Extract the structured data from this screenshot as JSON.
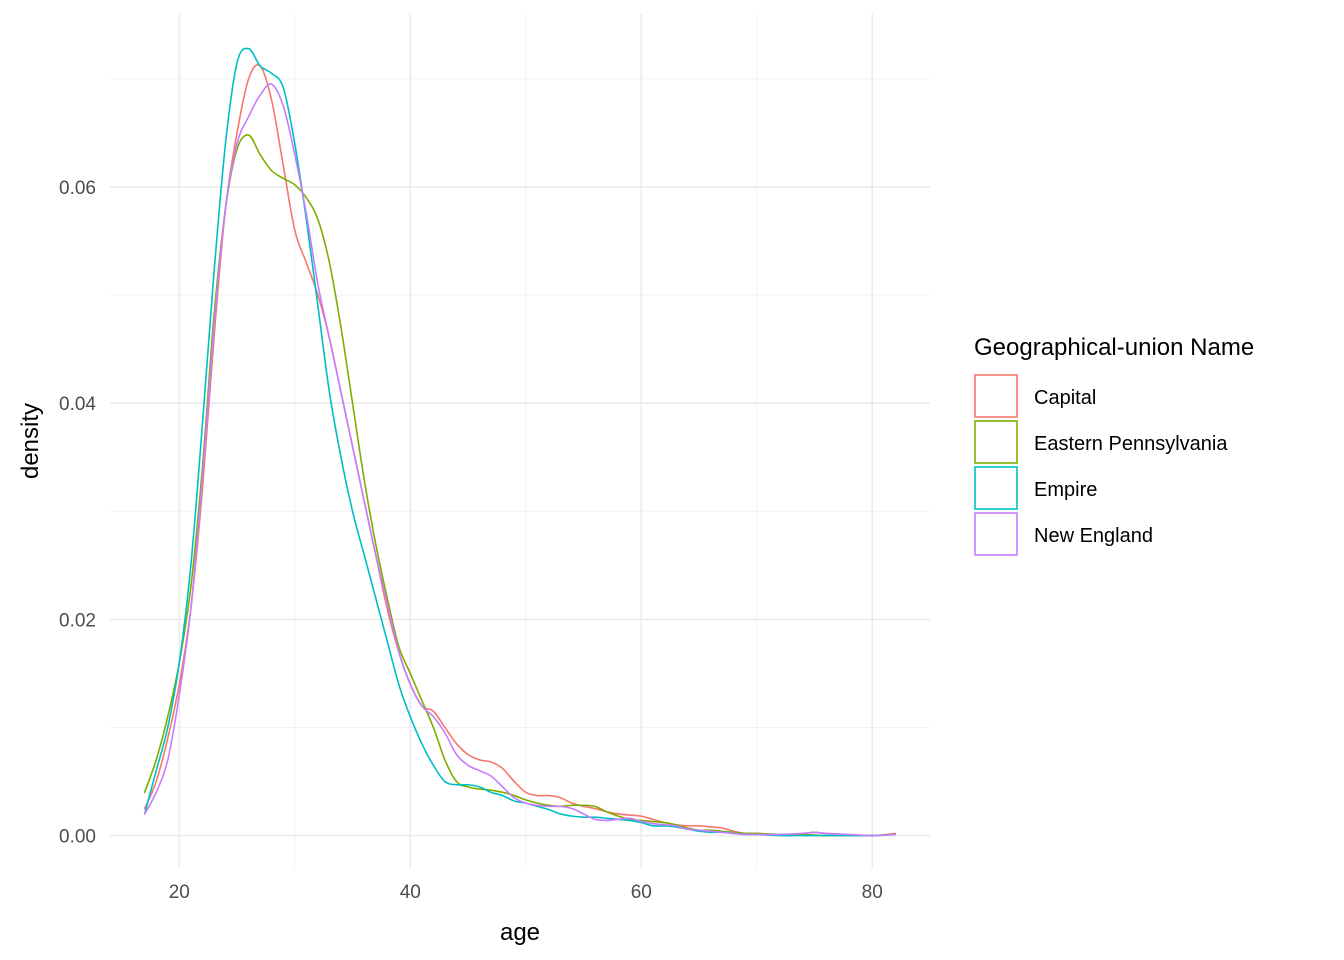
{
  "chart_data": {
    "type": "line",
    "xlabel": "age",
    "ylabel": "density",
    "xlim": [
      14,
      85
    ],
    "ylim": [
      -0.003,
      0.076
    ],
    "x_ticks": [
      20,
      40,
      60,
      80
    ],
    "x_tick_labels": [
      "20",
      "40",
      "60",
      "80"
    ],
    "y_ticks": [
      0.0,
      0.02,
      0.04,
      0.06
    ],
    "y_tick_labels": [
      "0.00",
      "0.02",
      "0.04",
      "0.06"
    ],
    "grid": true,
    "legend": {
      "title": "Geographical-union Name",
      "position": "right"
    },
    "series": [
      {
        "name": "Capital",
        "color": "#F8766D",
        "points": [
          [
            17,
            0.0025
          ],
          [
            18,
            0.005
          ],
          [
            19,
            0.009
          ],
          [
            20,
            0.014
          ],
          [
            21,
            0.021
          ],
          [
            22,
            0.032
          ],
          [
            23,
            0.046
          ],
          [
            24,
            0.058
          ],
          [
            25,
            0.065
          ],
          [
            26,
            0.07
          ],
          [
            27,
            0.0712
          ],
          [
            28,
            0.068
          ],
          [
            29,
            0.062
          ],
          [
            30,
            0.056
          ],
          [
            31,
            0.053
          ],
          [
            32,
            0.05
          ],
          [
            33,
            0.046
          ],
          [
            34,
            0.041
          ],
          [
            35,
            0.036
          ],
          [
            36,
            0.031
          ],
          [
            37,
            0.026
          ],
          [
            38,
            0.021
          ],
          [
            39,
            0.017
          ],
          [
            40,
            0.014
          ],
          [
            41,
            0.012
          ],
          [
            42,
            0.0115
          ],
          [
            43,
            0.01
          ],
          [
            44,
            0.0085
          ],
          [
            45,
            0.0075
          ],
          [
            46,
            0.007
          ],
          [
            47,
            0.0068
          ],
          [
            48,
            0.0062
          ],
          [
            49,
            0.005
          ],
          [
            50,
            0.004
          ],
          [
            51,
            0.0037
          ],
          [
            52,
            0.0037
          ],
          [
            53,
            0.0035
          ],
          [
            54,
            0.003
          ],
          [
            55,
            0.0027
          ],
          [
            56,
            0.0025
          ],
          [
            57,
            0.0022
          ],
          [
            58,
            0.002
          ],
          [
            59,
            0.0019
          ],
          [
            60,
            0.0018
          ],
          [
            61,
            0.0015
          ],
          [
            62,
            0.0012
          ],
          [
            63,
            0.001
          ],
          [
            64,
            0.0009
          ],
          [
            65,
            0.0009
          ],
          [
            66,
            0.0008
          ],
          [
            67,
            0.0007
          ],
          [
            68,
            0.0004
          ],
          [
            69,
            0.0002
          ],
          [
            70,
            0.0002
          ],
          [
            72,
            0.0001
          ],
          [
            74,
            0.0002
          ],
          [
            75,
            0.0003
          ],
          [
            76,
            0.0002
          ],
          [
            78,
            0.0001
          ],
          [
            80,
            0.0
          ],
          [
            82,
            0.0002
          ]
        ]
      },
      {
        "name": "Eastern Pennsylvania",
        "color": "#7CAE00",
        "points": [
          [
            17,
            0.004
          ],
          [
            18,
            0.007
          ],
          [
            19,
            0.011
          ],
          [
            20,
            0.016
          ],
          [
            21,
            0.023
          ],
          [
            22,
            0.034
          ],
          [
            23,
            0.048
          ],
          [
            24,
            0.058
          ],
          [
            25,
            0.0635
          ],
          [
            26,
            0.0648
          ],
          [
            27,
            0.063
          ],
          [
            28,
            0.0615
          ],
          [
            29,
            0.0608
          ],
          [
            30,
            0.0602
          ],
          [
            31,
            0.059
          ],
          [
            32,
            0.057
          ],
          [
            33,
            0.053
          ],
          [
            34,
            0.047
          ],
          [
            35,
            0.04
          ],
          [
            36,
            0.033
          ],
          [
            37,
            0.027
          ],
          [
            38,
            0.022
          ],
          [
            39,
            0.0175
          ],
          [
            40,
            0.015
          ],
          [
            41,
            0.0125
          ],
          [
            42,
            0.01
          ],
          [
            43,
            0.007
          ],
          [
            44,
            0.005
          ],
          [
            45,
            0.0045
          ],
          [
            46,
            0.0043
          ],
          [
            47,
            0.0042
          ],
          [
            48,
            0.004
          ],
          [
            49,
            0.0037
          ],
          [
            50,
            0.0033
          ],
          [
            51,
            0.003
          ],
          [
            52,
            0.0028
          ],
          [
            53,
            0.0027
          ],
          [
            54,
            0.0028
          ],
          [
            55,
            0.0028
          ],
          [
            56,
            0.0027
          ],
          [
            57,
            0.0022
          ],
          [
            58,
            0.0018
          ],
          [
            59,
            0.0015
          ],
          [
            60,
            0.0014
          ],
          [
            61,
            0.0013
          ],
          [
            62,
            0.0012
          ],
          [
            63,
            0.001
          ],
          [
            64,
            0.0007
          ],
          [
            65,
            0.0005
          ],
          [
            66,
            0.0005
          ],
          [
            67,
            0.0004
          ],
          [
            68,
            0.0003
          ],
          [
            69,
            0.0002
          ],
          [
            70,
            0.0002
          ],
          [
            72,
            0.0001
          ],
          [
            74,
            0.0001
          ],
          [
            76,
            0.0
          ],
          [
            78,
            0.0
          ],
          [
            80,
            0.0
          ],
          [
            82,
            0.0001
          ]
        ]
      },
      {
        "name": "Empire",
        "color": "#00BFC4",
        "points": [
          [
            17,
            0.002
          ],
          [
            18,
            0.006
          ],
          [
            19,
            0.01
          ],
          [
            20,
            0.016
          ],
          [
            21,
            0.025
          ],
          [
            22,
            0.038
          ],
          [
            23,
            0.052
          ],
          [
            24,
            0.064
          ],
          [
            25,
            0.0715
          ],
          [
            26,
            0.0728
          ],
          [
            27,
            0.0712
          ],
          [
            28,
            0.0705
          ],
          [
            29,
            0.0692
          ],
          [
            30,
            0.064
          ],
          [
            31,
            0.057
          ],
          [
            32,
            0.049
          ],
          [
            33,
            0.041
          ],
          [
            34,
            0.035
          ],
          [
            35,
            0.03
          ],
          [
            36,
            0.026
          ],
          [
            37,
            0.022
          ],
          [
            38,
            0.018
          ],
          [
            39,
            0.014
          ],
          [
            40,
            0.011
          ],
          [
            41,
            0.0085
          ],
          [
            42,
            0.0065
          ],
          [
            43,
            0.005
          ],
          [
            44,
            0.0047
          ],
          [
            45,
            0.0047
          ],
          [
            46,
            0.0045
          ],
          [
            47,
            0.004
          ],
          [
            48,
            0.0037
          ],
          [
            49,
            0.0032
          ],
          [
            50,
            0.003
          ],
          [
            51,
            0.0027
          ],
          [
            52,
            0.0024
          ],
          [
            53,
            0.002
          ],
          [
            54,
            0.0018
          ],
          [
            55,
            0.0017
          ],
          [
            56,
            0.0017
          ],
          [
            57,
            0.0016
          ],
          [
            58,
            0.0015
          ],
          [
            59,
            0.0014
          ],
          [
            60,
            0.0012
          ],
          [
            61,
            0.0009
          ],
          [
            62,
            0.0009
          ],
          [
            63,
            0.0008
          ],
          [
            64,
            0.0006
          ],
          [
            65,
            0.0004
          ],
          [
            66,
            0.0003
          ],
          [
            67,
            0.0003
          ],
          [
            68,
            0.0002
          ],
          [
            69,
            0.0001
          ],
          [
            70,
            0.0001
          ],
          [
            72,
            0.0
          ],
          [
            74,
            0.0
          ],
          [
            76,
            0.0
          ],
          [
            78,
            0.0
          ],
          [
            80,
            0.0
          ],
          [
            82,
            0.0001
          ]
        ]
      },
      {
        "name": "New England",
        "color": "#C77CFF",
        "points": [
          [
            17,
            0.002
          ],
          [
            18,
            0.004
          ],
          [
            19,
            0.007
          ],
          [
            20,
            0.013
          ],
          [
            21,
            0.021
          ],
          [
            22,
            0.033
          ],
          [
            23,
            0.047
          ],
          [
            24,
            0.058
          ],
          [
            25,
            0.064
          ],
          [
            26,
            0.0665
          ],
          [
            27,
            0.0685
          ],
          [
            28,
            0.0695
          ],
          [
            29,
            0.0675
          ],
          [
            30,
            0.063
          ],
          [
            31,
            0.0575
          ],
          [
            32,
            0.051
          ],
          [
            33,
            0.046
          ],
          [
            34,
            0.041
          ],
          [
            35,
            0.036
          ],
          [
            36,
            0.031
          ],
          [
            37,
            0.026
          ],
          [
            38,
            0.0215
          ],
          [
            39,
            0.017
          ],
          [
            40,
            0.014
          ],
          [
            41,
            0.012
          ],
          [
            42,
            0.011
          ],
          [
            43,
            0.0095
          ],
          [
            44,
            0.0075
          ],
          [
            45,
            0.0065
          ],
          [
            46,
            0.006
          ],
          [
            47,
            0.0055
          ],
          [
            48,
            0.0045
          ],
          [
            49,
            0.0035
          ],
          [
            50,
            0.003
          ],
          [
            51,
            0.0028
          ],
          [
            52,
            0.0027
          ],
          [
            53,
            0.0027
          ],
          [
            54,
            0.0025
          ],
          [
            55,
            0.002
          ],
          [
            56,
            0.0015
          ],
          [
            57,
            0.0014
          ],
          [
            58,
            0.0015
          ],
          [
            59,
            0.0016
          ],
          [
            60,
            0.0013
          ],
          [
            61,
            0.0011
          ],
          [
            62,
            0.001
          ],
          [
            63,
            0.0009
          ],
          [
            64,
            0.0006
          ],
          [
            65,
            0.0005
          ],
          [
            66,
            0.0004
          ],
          [
            67,
            0.0003
          ],
          [
            68,
            0.0002
          ],
          [
            69,
            0.0001
          ],
          [
            70,
            0.0001
          ],
          [
            72,
            0.0001
          ],
          [
            74,
            0.0002
          ],
          [
            75,
            0.0003
          ],
          [
            76,
            0.0002
          ],
          [
            78,
            0.0001
          ],
          [
            80,
            0.0
          ],
          [
            82,
            0.0001
          ]
        ]
      }
    ]
  }
}
